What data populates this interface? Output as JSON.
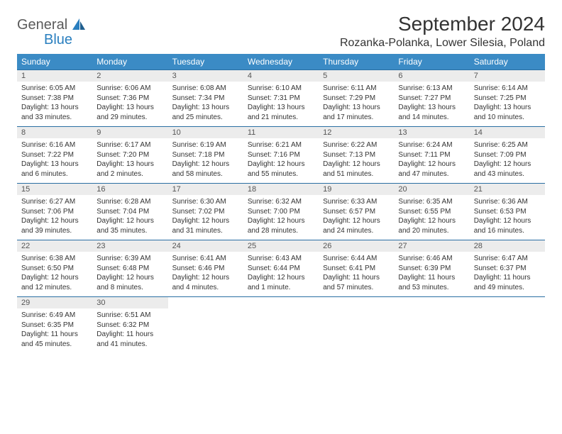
{
  "brand": {
    "general": "General",
    "blue": "Blue"
  },
  "title": "September 2024",
  "location": "Rozanka-Polanka, Lower Silesia, Poland",
  "colors": {
    "header_bg": "#3b8bc5",
    "header_text": "#ffffff",
    "daynum_bg": "#ececec",
    "rule": "#2a6fa3",
    "logo_blue": "#2a7fbf",
    "logo_gray": "#5a5a5a"
  },
  "typography": {
    "title_fontsize": 28,
    "location_fontsize": 16,
    "weekday_fontsize": 12,
    "cell_fontsize": 10
  },
  "weekdays": [
    "Sunday",
    "Monday",
    "Tuesday",
    "Wednesday",
    "Thursday",
    "Friday",
    "Saturday"
  ],
  "weeks": [
    [
      {
        "n": "1",
        "sr": "Sunrise: 6:05 AM",
        "ss": "Sunset: 7:38 PM",
        "d1": "Daylight: 13 hours",
        "d2": "and 33 minutes."
      },
      {
        "n": "2",
        "sr": "Sunrise: 6:06 AM",
        "ss": "Sunset: 7:36 PM",
        "d1": "Daylight: 13 hours",
        "d2": "and 29 minutes."
      },
      {
        "n": "3",
        "sr": "Sunrise: 6:08 AM",
        "ss": "Sunset: 7:34 PM",
        "d1": "Daylight: 13 hours",
        "d2": "and 25 minutes."
      },
      {
        "n": "4",
        "sr": "Sunrise: 6:10 AM",
        "ss": "Sunset: 7:31 PM",
        "d1": "Daylight: 13 hours",
        "d2": "and 21 minutes."
      },
      {
        "n": "5",
        "sr": "Sunrise: 6:11 AM",
        "ss": "Sunset: 7:29 PM",
        "d1": "Daylight: 13 hours",
        "d2": "and 17 minutes."
      },
      {
        "n": "6",
        "sr": "Sunrise: 6:13 AM",
        "ss": "Sunset: 7:27 PM",
        "d1": "Daylight: 13 hours",
        "d2": "and 14 minutes."
      },
      {
        "n": "7",
        "sr": "Sunrise: 6:14 AM",
        "ss": "Sunset: 7:25 PM",
        "d1": "Daylight: 13 hours",
        "d2": "and 10 minutes."
      }
    ],
    [
      {
        "n": "8",
        "sr": "Sunrise: 6:16 AM",
        "ss": "Sunset: 7:22 PM",
        "d1": "Daylight: 13 hours",
        "d2": "and 6 minutes."
      },
      {
        "n": "9",
        "sr": "Sunrise: 6:17 AM",
        "ss": "Sunset: 7:20 PM",
        "d1": "Daylight: 13 hours",
        "d2": "and 2 minutes."
      },
      {
        "n": "10",
        "sr": "Sunrise: 6:19 AM",
        "ss": "Sunset: 7:18 PM",
        "d1": "Daylight: 12 hours",
        "d2": "and 58 minutes."
      },
      {
        "n": "11",
        "sr": "Sunrise: 6:21 AM",
        "ss": "Sunset: 7:16 PM",
        "d1": "Daylight: 12 hours",
        "d2": "and 55 minutes."
      },
      {
        "n": "12",
        "sr": "Sunrise: 6:22 AM",
        "ss": "Sunset: 7:13 PM",
        "d1": "Daylight: 12 hours",
        "d2": "and 51 minutes."
      },
      {
        "n": "13",
        "sr": "Sunrise: 6:24 AM",
        "ss": "Sunset: 7:11 PM",
        "d1": "Daylight: 12 hours",
        "d2": "and 47 minutes."
      },
      {
        "n": "14",
        "sr": "Sunrise: 6:25 AM",
        "ss": "Sunset: 7:09 PM",
        "d1": "Daylight: 12 hours",
        "d2": "and 43 minutes."
      }
    ],
    [
      {
        "n": "15",
        "sr": "Sunrise: 6:27 AM",
        "ss": "Sunset: 7:06 PM",
        "d1": "Daylight: 12 hours",
        "d2": "and 39 minutes."
      },
      {
        "n": "16",
        "sr": "Sunrise: 6:28 AM",
        "ss": "Sunset: 7:04 PM",
        "d1": "Daylight: 12 hours",
        "d2": "and 35 minutes."
      },
      {
        "n": "17",
        "sr": "Sunrise: 6:30 AM",
        "ss": "Sunset: 7:02 PM",
        "d1": "Daylight: 12 hours",
        "d2": "and 31 minutes."
      },
      {
        "n": "18",
        "sr": "Sunrise: 6:32 AM",
        "ss": "Sunset: 7:00 PM",
        "d1": "Daylight: 12 hours",
        "d2": "and 28 minutes."
      },
      {
        "n": "19",
        "sr": "Sunrise: 6:33 AM",
        "ss": "Sunset: 6:57 PM",
        "d1": "Daylight: 12 hours",
        "d2": "and 24 minutes."
      },
      {
        "n": "20",
        "sr": "Sunrise: 6:35 AM",
        "ss": "Sunset: 6:55 PM",
        "d1": "Daylight: 12 hours",
        "d2": "and 20 minutes."
      },
      {
        "n": "21",
        "sr": "Sunrise: 6:36 AM",
        "ss": "Sunset: 6:53 PM",
        "d1": "Daylight: 12 hours",
        "d2": "and 16 minutes."
      }
    ],
    [
      {
        "n": "22",
        "sr": "Sunrise: 6:38 AM",
        "ss": "Sunset: 6:50 PM",
        "d1": "Daylight: 12 hours",
        "d2": "and 12 minutes."
      },
      {
        "n": "23",
        "sr": "Sunrise: 6:39 AM",
        "ss": "Sunset: 6:48 PM",
        "d1": "Daylight: 12 hours",
        "d2": "and 8 minutes."
      },
      {
        "n": "24",
        "sr": "Sunrise: 6:41 AM",
        "ss": "Sunset: 6:46 PM",
        "d1": "Daylight: 12 hours",
        "d2": "and 4 minutes."
      },
      {
        "n": "25",
        "sr": "Sunrise: 6:43 AM",
        "ss": "Sunset: 6:44 PM",
        "d1": "Daylight: 12 hours",
        "d2": "and 1 minute."
      },
      {
        "n": "26",
        "sr": "Sunrise: 6:44 AM",
        "ss": "Sunset: 6:41 PM",
        "d1": "Daylight: 11 hours",
        "d2": "and 57 minutes."
      },
      {
        "n": "27",
        "sr": "Sunrise: 6:46 AM",
        "ss": "Sunset: 6:39 PM",
        "d1": "Daylight: 11 hours",
        "d2": "and 53 minutes."
      },
      {
        "n": "28",
        "sr": "Sunrise: 6:47 AM",
        "ss": "Sunset: 6:37 PM",
        "d1": "Daylight: 11 hours",
        "d2": "and 49 minutes."
      }
    ],
    [
      {
        "n": "29",
        "sr": "Sunrise: 6:49 AM",
        "ss": "Sunset: 6:35 PM",
        "d1": "Daylight: 11 hours",
        "d2": "and 45 minutes."
      },
      {
        "n": "30",
        "sr": "Sunrise: 6:51 AM",
        "ss": "Sunset: 6:32 PM",
        "d1": "Daylight: 11 hours",
        "d2": "and 41 minutes."
      },
      null,
      null,
      null,
      null,
      null
    ]
  ]
}
